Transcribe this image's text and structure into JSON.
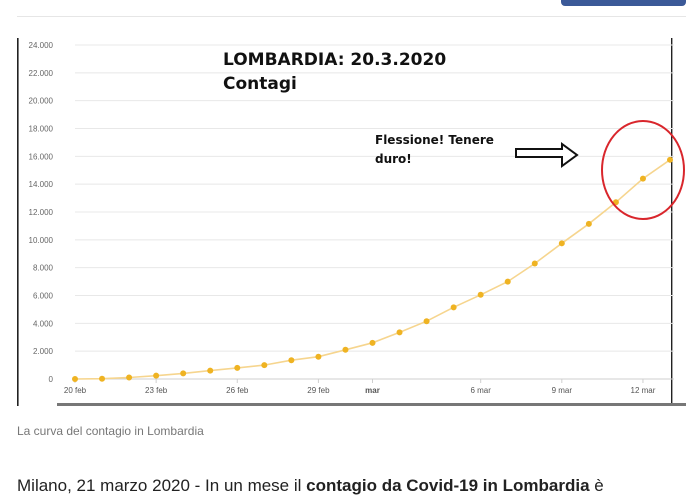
{
  "page": {
    "caption": "La curva del contagio in Lombardia",
    "lead": {
      "prefix": "Milano, 21 marzo 2020 - In un mese il ",
      "bold": "contagio da Covid-19 in Lombardia",
      "suffix": " è"
    }
  },
  "chart_overlay": {
    "title_line1": "LOMBARDIA: 20.3.2020",
    "title_line2": "Contagi",
    "annotation": "Flessione! Tenere duro!"
  },
  "colors": {
    "line": "#f6d58e",
    "point": "#efb322",
    "circle": "#d9262c",
    "grid": "#e8e8e8"
  },
  "chart_data": {
    "type": "line",
    "title": "LOMBARDIA: 20.3.2020 Contagi",
    "ylim": [
      0,
      24000
    ],
    "yticks": [
      0,
      2000,
      4000,
      6000,
      8000,
      10000,
      12000,
      14000,
      16000,
      18000,
      20000,
      22000,
      24000
    ],
    "ytick_labels": [
      "0",
      "2.000",
      "4.000",
      "6.000",
      "8.000",
      "10.000",
      "12.000",
      "14.000",
      "16.000",
      "18.000",
      "20.000",
      "22.000",
      "24.000"
    ],
    "xtick_labels": [
      {
        "label": "20 feb",
        "index": 0
      },
      {
        "label": "23 feb",
        "index": 3
      },
      {
        "label": "26 feb",
        "index": 6
      },
      {
        "label": "29 feb",
        "index": 9
      },
      {
        "label": "mar",
        "index": 11
      },
      {
        "label": "6 mar",
        "index": 15
      },
      {
        "label": "9 mar",
        "index": 18
      },
      {
        "label": "12 mar",
        "index": 21
      }
    ],
    "grid": true,
    "series": [
      {
        "values": [
          0,
          20,
          110,
          240,
          400,
          600,
          800,
          1000,
          1350,
          1600,
          2100,
          2600,
          3350,
          4150,
          5150,
          6050,
          7000,
          8300,
          9750,
          11150,
          12700,
          14400,
          15750
        ]
      }
    ]
  }
}
